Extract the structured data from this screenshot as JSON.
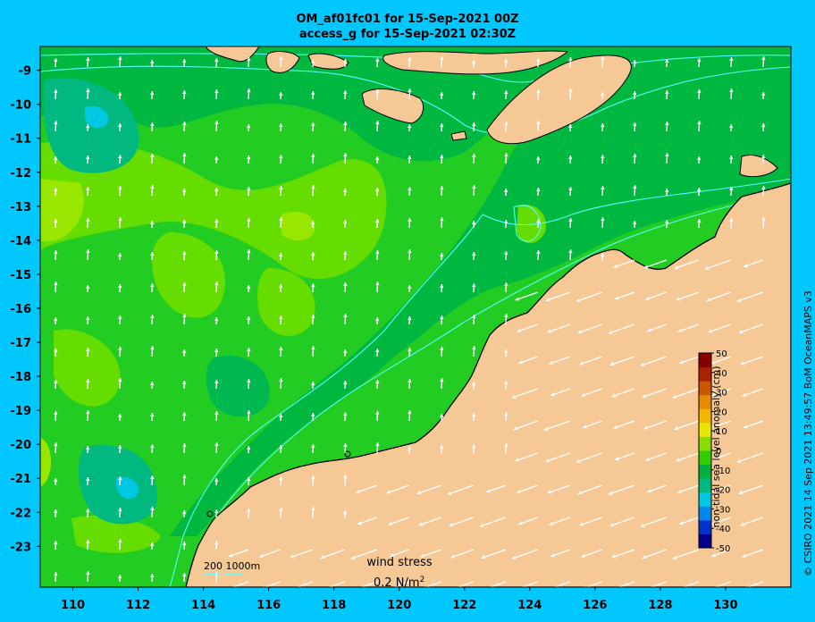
{
  "header": {
    "title_line1": "OM_af01fc01 for 15-Sep-2021 00Z",
    "title_line2": "access_g for 15-Sep-2021 02:30Z"
  },
  "map": {
    "lon_ticks": [
      "110",
      "112",
      "114",
      "116",
      "118",
      "120",
      "122",
      "124",
      "126",
      "128",
      "130"
    ],
    "lat_ticks": [
      "-9",
      "-10",
      "-11",
      "-12",
      "-13",
      "-14",
      "-15",
      "-16",
      "-17",
      "-18",
      "-19",
      "-20",
      "-21",
      "-22",
      "-23"
    ],
    "lon_range": [
      109,
      132
    ],
    "lat_range": [
      -24.2,
      -8.3
    ],
    "colors": {
      "ocean_low": "#00b850",
      "ocean_mid": "#22cc22",
      "ocean_high": "#66dd00",
      "ocean_higher": "#99e600",
      "land": "#f5c896",
      "coast": "#000000",
      "isobath": "#55ffff",
      "arrows": "#ffffff"
    }
  },
  "colorbar": {
    "label": "non-tidal sea level anomaly (cm)",
    "ticks": [
      "50",
      "40",
      "30",
      "20",
      "10",
      "0",
      "-10",
      "-20",
      "-30",
      "-40",
      "-50"
    ],
    "colors": [
      "#00008b",
      "#0033cc",
      "#0088ee",
      "#00c8e0",
      "#00b880",
      "#00b040",
      "#33cc00",
      "#88dd00",
      "#e6e600",
      "#f2b800",
      "#e68a00",
      "#cc5500",
      "#aa2200",
      "#880000"
    ]
  },
  "legend": {
    "depth_label": "200  1000m",
    "wind_label": "wind stress",
    "wind_scale": "0.2 N/m",
    "wind_scale_sup": "2"
  },
  "credit": "© CSIRO 2021  14 Sep 2021 13:49:57 BoM OceanMAPS v3"
}
